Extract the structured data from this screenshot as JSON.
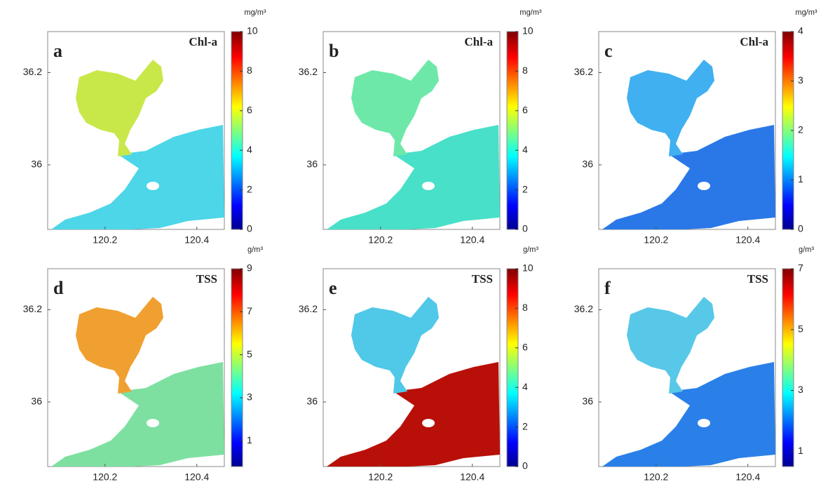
{
  "chart_data": [
    {
      "type": "map",
      "label": "a",
      "title": "Chl-a",
      "colorbar_label": "mg/m³",
      "clim": [
        0,
        10
      ],
      "cticks": [
        0,
        2,
        4,
        6,
        8,
        10
      ],
      "xlim": [
        120.075,
        120.46
      ],
      "xticks": [
        120.2,
        120.4
      ],
      "ylim": [
        35.86,
        36.289
      ],
      "yticks": [
        36,
        36.2
      ],
      "fill": [
        "#c8e84a",
        "#4cd6e8"
      ]
    },
    {
      "type": "map",
      "label": "b",
      "title": "Chl-a",
      "colorbar_label": "mg/m³",
      "clim": [
        0,
        10
      ],
      "cticks": [
        0,
        2,
        4,
        6,
        8,
        10
      ],
      "xlim": [
        120.075,
        120.46
      ],
      "xticks": [
        120.2,
        120.4
      ],
      "ylim": [
        35.86,
        36.289
      ],
      "yticks": [
        36,
        36.2
      ],
      "fill": [
        "#6ee8a8",
        "#48e0c8"
      ]
    },
    {
      "type": "map",
      "label": "c",
      "title": "Chl-a",
      "colorbar_label": "mg/m³",
      "clim": [
        0,
        4
      ],
      "cticks": [
        0,
        1,
        2,
        3,
        4
      ],
      "xlim": [
        120.075,
        120.46
      ],
      "xticks": [
        120.2,
        120.4
      ],
      "ylim": [
        35.86,
        36.289
      ],
      "yticks": [
        36,
        36.2
      ],
      "fill": [
        "#40b0f0",
        "#2a78e8"
      ]
    },
    {
      "type": "map",
      "label": "d",
      "title": "TSS",
      "colorbar_label": "g/m³",
      "clim": [
        -0.2,
        9
      ],
      "cticks": [
        1,
        3,
        5,
        7,
        9
      ],
      "xlim": [
        120.075,
        120.46
      ],
      "xticks": [
        120.2,
        120.4
      ],
      "ylim": [
        35.86,
        36.289
      ],
      "yticks": [
        36,
        36.2
      ],
      "fill": [
        "#f0a030",
        "#7ee0a0"
      ]
    },
    {
      "type": "map",
      "label": "e",
      "title": "TSS",
      "colorbar_label": "g/m³",
      "clim": [
        0,
        10
      ],
      "cticks": [
        0,
        2,
        4,
        6,
        8,
        10
      ],
      "xlim": [
        120.075,
        120.46
      ],
      "xticks": [
        120.2,
        120.4
      ],
      "ylim": [
        35.86,
        36.289
      ],
      "yticks": [
        36,
        36.2
      ],
      "fill": [
        "#50c8e8",
        "#b81008"
      ]
    },
    {
      "type": "map",
      "label": "f",
      "title": "TSS",
      "colorbar_label": "g/m³",
      "clim": [
        0.5,
        7
      ],
      "cticks": [
        1,
        3,
        5,
        7
      ],
      "xlim": [
        120.075,
        120.46
      ],
      "xticks": [
        120.2,
        120.4
      ],
      "ylim": [
        35.86,
        36.289
      ],
      "yticks": [
        36,
        36.2
      ],
      "fill": [
        "#58c8e8",
        "#2a80e8"
      ]
    }
  ]
}
